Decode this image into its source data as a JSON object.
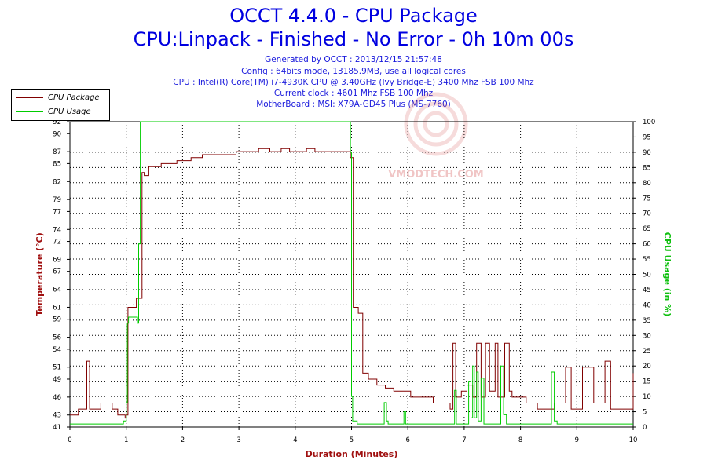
{
  "header": {
    "title": "OCCT 4.4.0 - CPU Package",
    "subtitle": "CPU:Linpack - Finished - No Error - 0h 10m 00s",
    "info_lines": [
      "Generated by OCCT : 2013/12/15 21:57:48",
      "Config : 64bits mode, 13185.9MB, use all logical cores",
      "CPU : Intel(R) Core(TM) i7-4930K CPU @ 3.40GHz (Ivy Bridge-E) 3400 Mhz FSB 100 Mhz",
      "Current clock : 4601 Mhz FSB 100 Mhz",
      "MotherBoard : MSI: X79A-GD45 Plus (MS-7760)"
    ]
  },
  "watermark": {
    "text": "VMODTECH.COM"
  },
  "colors": {
    "temp": "#800000",
    "usage": "#00cc00",
    "title": "#0000e0",
    "axis_left": "#a01010",
    "axis_right": "#10c010"
  },
  "chart_data": {
    "type": "line",
    "xlabel": "Duration (Minutes)",
    "ylabel_left": "Temperature (°C)",
    "ylabel_right": "CPU Usage (in %)",
    "xlim": [
      0,
      10
    ],
    "ylim_left": [
      41,
      92
    ],
    "ylim_right": [
      0,
      100
    ],
    "grid": true,
    "legend_position": "top-left",
    "x_ticks": [
      "0",
      "1",
      "2",
      "3",
      "4",
      "5",
      "6",
      "7",
      "8",
      "9",
      "10"
    ],
    "y_left_ticks": [
      41,
      43,
      46,
      49,
      51,
      54,
      56,
      59,
      61,
      64,
      67,
      69,
      72,
      74,
      77,
      79,
      82,
      85,
      87,
      90,
      92
    ],
    "y_right_ticks": [
      0,
      5,
      10,
      15,
      20,
      25,
      30,
      35,
      40,
      45,
      50,
      55,
      60,
      65,
      70,
      75,
      80,
      85,
      90,
      95,
      100
    ],
    "series": [
      {
        "name": "CPU Package",
        "axis": "left",
        "x": [
          0,
          0.15,
          0.3,
          0.35,
          0.4,
          0.55,
          0.75,
          0.85,
          0.98,
          1.0,
          1.03,
          1.05,
          1.18,
          1.22,
          1.28,
          1.32,
          1.4,
          1.5,
          1.62,
          1.75,
          1.9,
          2.0,
          2.15,
          2.35,
          2.55,
          2.75,
          2.95,
          3.15,
          3.35,
          3.55,
          3.75,
          3.9,
          4.05,
          4.2,
          4.35,
          4.55,
          4.75,
          4.95,
          4.98,
          5.0,
          5.03,
          5.08,
          5.12,
          5.2,
          5.3,
          5.45,
          5.6,
          5.75,
          5.9,
          6.05,
          6.15,
          6.3,
          6.45,
          6.6,
          6.75,
          6.8,
          6.85,
          6.9,
          6.95,
          7.05,
          7.15,
          7.22,
          7.3,
          7.38,
          7.45,
          7.5,
          7.55,
          7.6,
          7.65,
          7.72,
          7.8,
          7.85,
          7.95,
          8.1,
          8.3,
          8.5,
          8.6,
          8.7,
          8.8,
          8.9,
          9.0,
          9.1,
          9.3,
          9.45,
          9.5,
          9.6,
          9.75,
          9.9,
          10.0
        ],
        "values": [
          43,
          44,
          52,
          44,
          44,
          45,
          44,
          43,
          42.5,
          43,
          61,
          61,
          62.5,
          62.5,
          83.5,
          83,
          84.5,
          84.5,
          85,
          85,
          85.5,
          85.5,
          86,
          86.5,
          86.5,
          86.5,
          87,
          87,
          87.5,
          87,
          87.5,
          87,
          87,
          87.5,
          87,
          87,
          87,
          87,
          86,
          86,
          61,
          61,
          60,
          50,
          49,
          48,
          47.5,
          47,
          47,
          46,
          46,
          46,
          45,
          45,
          44,
          55,
          46,
          46,
          47,
          48,
          46,
          55,
          46,
          55,
          47,
          47,
          55,
          46,
          46,
          55,
          47,
          46,
          46,
          45,
          44,
          44,
          45,
          45,
          51,
          44,
          44,
          51,
          45,
          45,
          52,
          44,
          44,
          44,
          50
        ]
      },
      {
        "name": "CPU Usage",
        "axis": "right",
        "x": [
          0,
          0.3,
          0.6,
          0.95,
          1.0,
          1.02,
          1.04,
          1.2,
          1.22,
          1.25,
          1.28,
          1.5,
          2.0,
          3.0,
          4.0,
          4.95,
          4.98,
          5.0,
          5.02,
          5.1,
          5.55,
          5.58,
          5.62,
          5.65,
          5.9,
          5.93,
          5.96,
          6.5,
          6.8,
          6.83,
          6.86,
          7.05,
          7.08,
          7.12,
          7.15,
          7.18,
          7.22,
          7.25,
          7.3,
          7.35,
          7.6,
          7.65,
          7.7,
          7.75,
          7.8,
          8.5,
          8.55,
          8.6,
          8.65,
          9.2,
          9.5,
          10.0
        ],
        "values": [
          1,
          1,
          1,
          2,
          8,
          34,
          36,
          34,
          60,
          100,
          100,
          100,
          100,
          100,
          100,
          100,
          90,
          10,
          2,
          1,
          1,
          8,
          2,
          1,
          1,
          5,
          1,
          1,
          1,
          12,
          1,
          1,
          15,
          3,
          20,
          3,
          18,
          2,
          16,
          1,
          1,
          20,
          4,
          1,
          1,
          1,
          18,
          2,
          1,
          1,
          1,
          1
        ]
      }
    ]
  }
}
